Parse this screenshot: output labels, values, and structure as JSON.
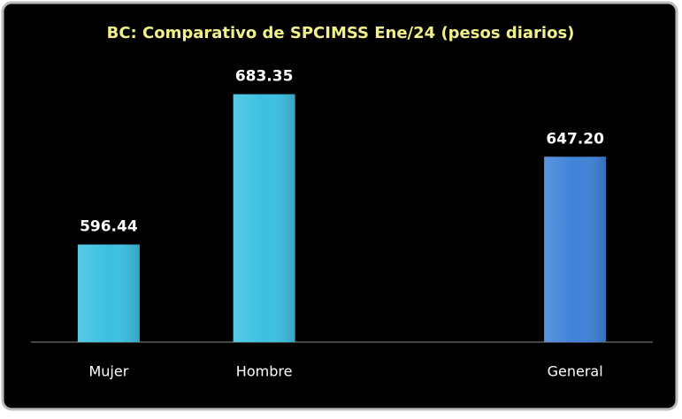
{
  "chart_data": {
    "type": "bar",
    "title": "BC: Comparativo de SPCIMSS Ene/24 (pesos diarios)",
    "categories": [
      "Mujer",
      "Hombre",
      null,
      "General"
    ],
    "values": [
      596.44,
      683.35,
      null,
      647.2
    ],
    "value_labels": [
      "596.44",
      "683.35",
      null,
      "647.20"
    ],
    "colors": [
      "#3cc0e2",
      "#3cc0e2",
      null,
      "#3f82d8"
    ],
    "ylim": [
      540,
      700
    ]
  }
}
